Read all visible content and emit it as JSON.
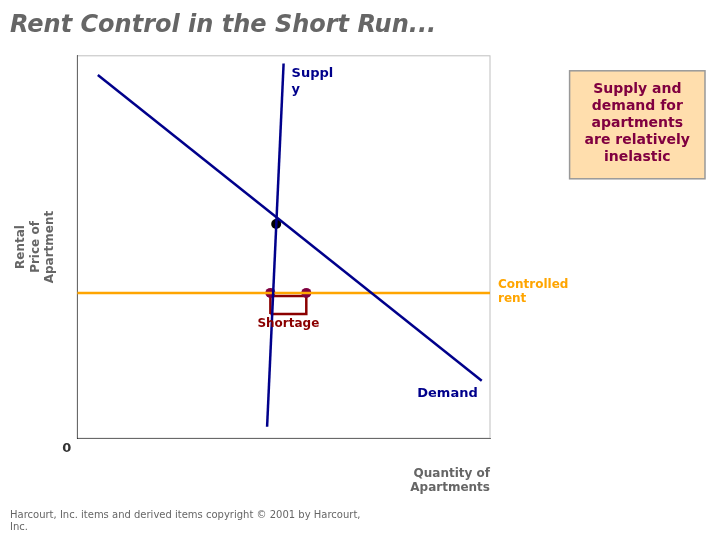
{
  "chart_data": {
    "type": "line",
    "title": "Rent Control in the Short Run...",
    "xlabel": "Quantity of\nApartments",
    "ylabel": "Rental\nPrice of\nApartment",
    "origin_label": "0",
    "note": "Supply and\ndemand for\napartments\nare relatively\ninelastic",
    "footnote": "Harcourt, Inc. items and derived items copyright © 2001 by Harcourt,\nInc.",
    "xlim": [
      0,
      10
    ],
    "ylim": [
      0,
      10
    ],
    "grid": false,
    "tick_labels": false,
    "series": [
      {
        "name": "Suppl\ny",
        "color": "#00008B",
        "x": [
          4.6,
          5.0
        ],
        "values": [
          0.3,
          9.8
        ]
      },
      {
        "name": "Demand",
        "color": "#00008B",
        "x": [
          0.5,
          9.8
        ],
        "values": [
          9.5,
          1.5
        ]
      },
      {
        "name": "Controlled\nrent",
        "color": "#FFA500",
        "x": [
          0,
          10
        ],
        "values": [
          3.8,
          3.8
        ]
      },
      {
        "type": "scatter",
        "marker": "circle",
        "color": "#000000",
        "x": [
          4.82
        ],
        "values": [
          5.6
        ]
      },
      {
        "type": "scatter",
        "marker": "circle",
        "color": "#800040",
        "x": [
          4.68,
          5.55
        ],
        "values": [
          3.8,
          3.8
        ]
      },
      {
        "name": "Shortage",
        "color": "#8B0000",
        "x": [
          4.68,
          4.68,
          5.55,
          5.55,
          4.68
        ],
        "values": [
          3.25,
          3.72,
          3.72,
          3.25,
          3.25
        ]
      }
    ]
  }
}
